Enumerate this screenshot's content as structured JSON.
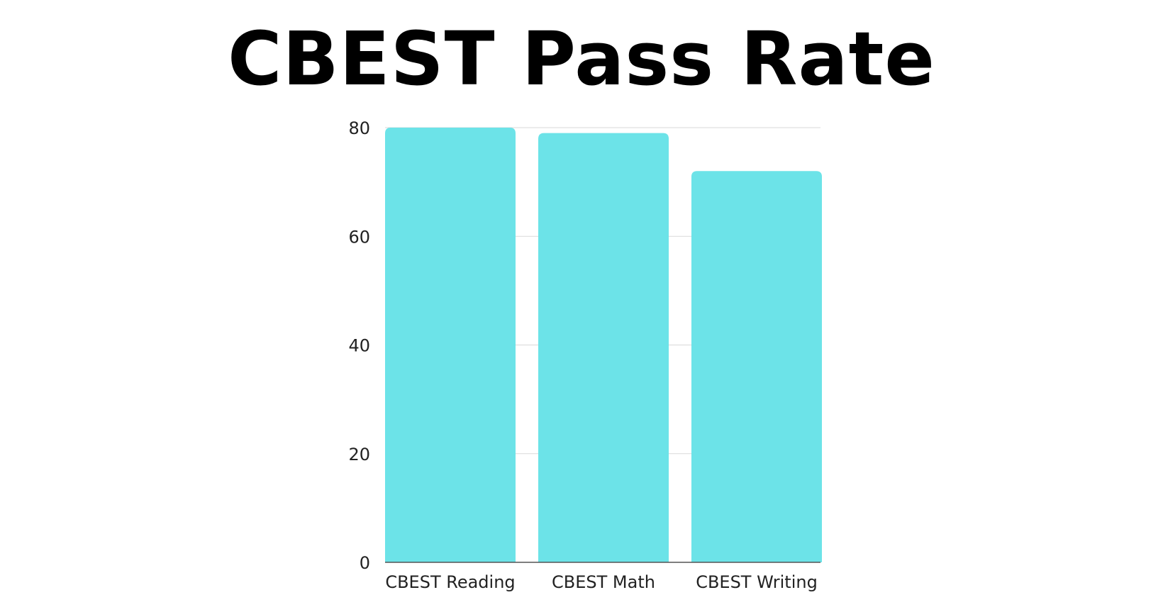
{
  "chart_data": {
    "type": "bar",
    "title": "CBEST Pass Rate",
    "categories": [
      "CBEST Reading",
      "CBEST Math",
      "CBEST Writing"
    ],
    "values": [
      80,
      79,
      72
    ],
    "xlabel": "",
    "ylabel": "",
    "ylim": [
      0,
      80
    ],
    "yticks": [
      0,
      20,
      40,
      60,
      80
    ],
    "grid": true,
    "legend": "none",
    "bar_color": "#6ce3e8",
    "grid_color": "#d9d9d9",
    "axis_color": "#555555"
  }
}
